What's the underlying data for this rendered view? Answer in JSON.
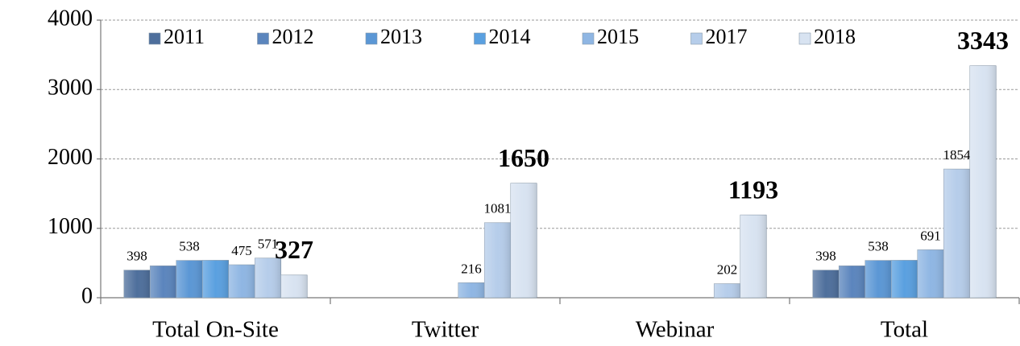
{
  "chart_data": {
    "type": "bar",
    "categories": [
      "Total On-Site",
      "Twitter",
      "Webinar",
      "Total"
    ],
    "series": [
      {
        "name": "2011",
        "color": "#4e6f9c",
        "values": [
          398,
          null,
          null,
          398
        ],
        "value_labels": [
          "398",
          null,
          null,
          "398"
        ]
      },
      {
        "name": "2012",
        "color": "#5b85bd",
        "values": [
          460,
          null,
          null,
          460
        ]
      },
      {
        "name": "2013",
        "color": "#5b97d5",
        "values": [
          538,
          null,
          null,
          538
        ],
        "value_labels": [
          "538",
          null,
          null,
          "538"
        ]
      },
      {
        "name": "2014",
        "color": "#5aa0e0",
        "values": [
          540,
          null,
          null,
          540
        ]
      },
      {
        "name": "2015",
        "color": "#8fb6e3",
        "values": [
          475,
          216,
          null,
          691
        ],
        "value_labels": [
          "475",
          "216",
          null,
          "691"
        ]
      },
      {
        "name": "2017",
        "color": "#b6cdea",
        "values": [
          571,
          1081,
          202,
          1854
        ],
        "value_labels": [
          "571",
          "1081",
          "202",
          "1854"
        ]
      },
      {
        "name": "2018",
        "color": "#d8e3f1",
        "values": [
          327,
          1650,
          1193,
          3343
        ],
        "value_labels": [
          "327",
          "1650",
          "1193",
          "3343"
        ]
      }
    ],
    "ylim": [
      0,
      4000
    ],
    "yticks": [
      0,
      1000,
      2000,
      3000,
      4000
    ],
    "grid": true,
    "legend": "top"
  }
}
